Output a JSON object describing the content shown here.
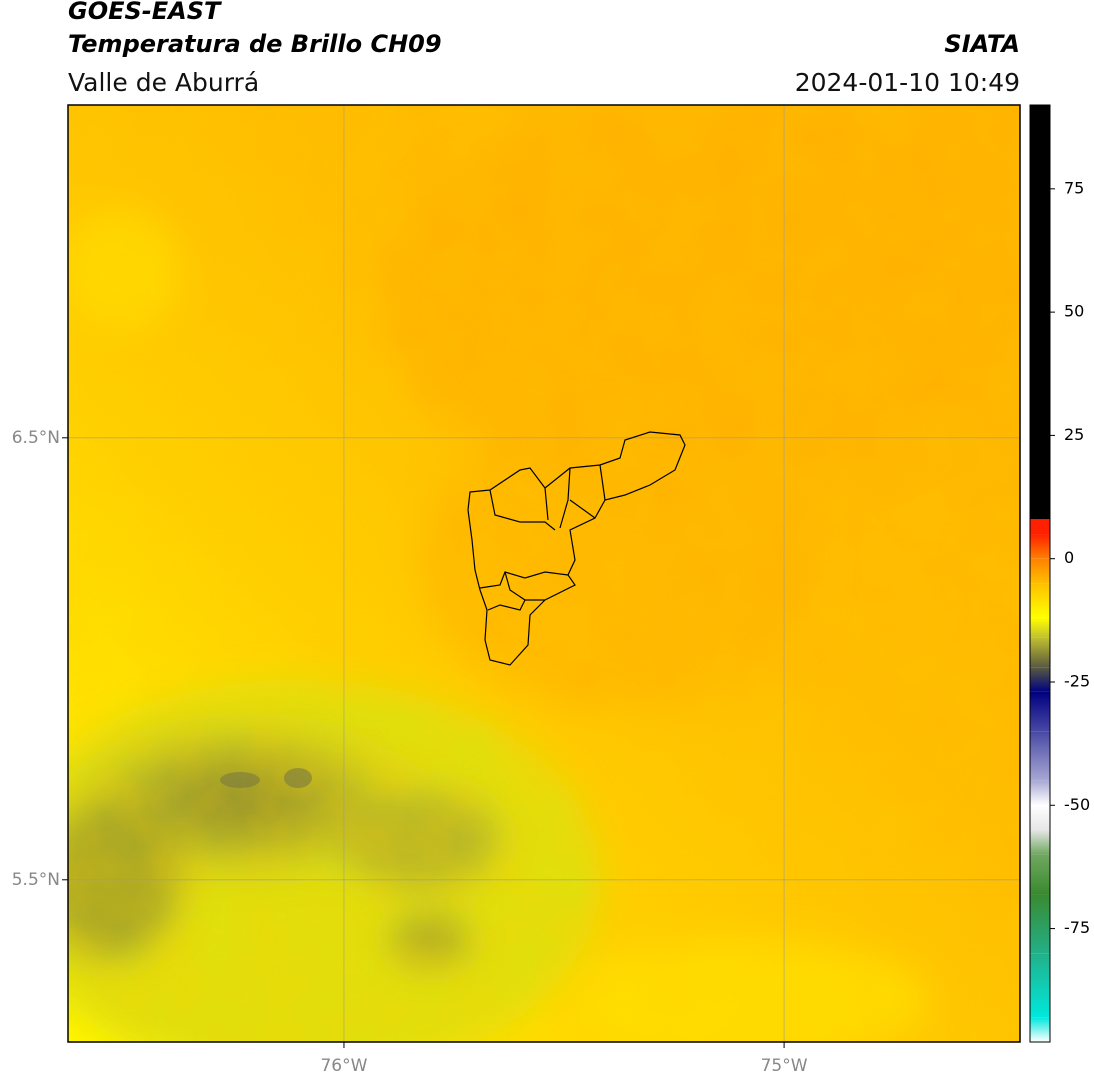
{
  "header": {
    "title": "GOES-EAST",
    "subtitle": "Temperatura de Brillo CH09",
    "region": "Valle de Aburrá",
    "source": "SIATA",
    "datetime": "2024-01-10 10:49"
  },
  "map": {
    "xlim": [
      -76.627,
      -74.464
    ],
    "ylim": [
      5.133,
      7.253
    ],
    "xticks": [
      {
        "value": -76,
        "label": "76°W"
      },
      {
        "value": -75,
        "label": "75°W"
      }
    ],
    "yticks": [
      {
        "value": 6.5,
        "label": "6.5°N"
      },
      {
        "value": 5.5,
        "label": "5.5°N"
      }
    ],
    "grid": true
  },
  "colorbar": {
    "lim": [
      -98,
      92
    ],
    "ticks": [
      75,
      50,
      25,
      0,
      -25,
      -50,
      -75
    ],
    "colormap": [
      {
        "value": -98,
        "color": "#ffffff"
      },
      {
        "value": -93,
        "color": "#00e8dc"
      },
      {
        "value": -80,
        "color": "#22b088"
      },
      {
        "value": -68,
        "color": "#3a8a30"
      },
      {
        "value": -60,
        "color": "#70a860"
      },
      {
        "value": -55,
        "color": "#e6e6e6"
      },
      {
        "value": -50,
        "color": "#ffffff"
      },
      {
        "value": -45,
        "color": "#a8a8d4"
      },
      {
        "value": -35,
        "color": "#4848a4"
      },
      {
        "value": -27,
        "color": "#000080"
      },
      {
        "value": -22,
        "color": "#5a5a40"
      },
      {
        "value": -16,
        "color": "#c0c030"
      },
      {
        "value": -12,
        "color": "#ffff00"
      },
      {
        "value": -5,
        "color": "#ffc000"
      },
      {
        "value": 0,
        "color": "#ff8000"
      },
      {
        "value": 5,
        "color": "#ff2000"
      },
      {
        "value": 8,
        "color": "#000000"
      }
    ]
  }
}
